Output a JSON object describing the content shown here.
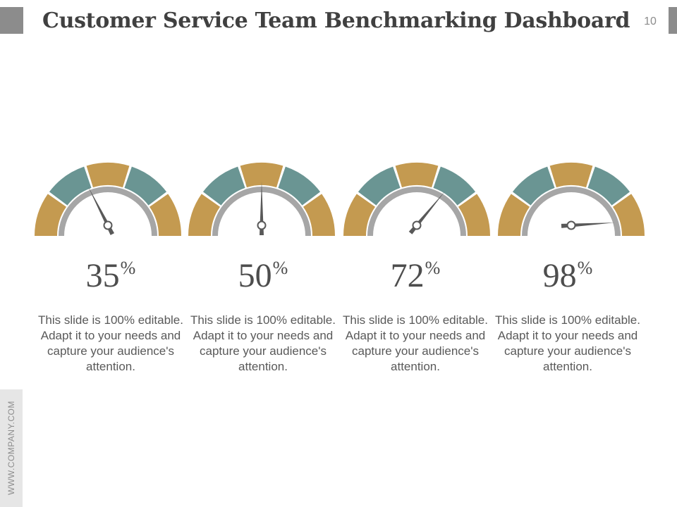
{
  "header": {
    "title": "Customer Service Team Benchmarking Dashboard",
    "page_number": "10"
  },
  "footer": {
    "side_text": "WWW.COMPANY.COM"
  },
  "colors": {
    "gold": "#c49a50",
    "teal": "#6a9593",
    "grey_arc": "#a6a6a6",
    "needle": "#595959"
  },
  "gauges": [
    {
      "percent": 35,
      "value": "35",
      "unit": "%",
      "text": "This slide is 100% editable. Adapt it to your needs and capture your audience's attention."
    },
    {
      "percent": 50,
      "value": "50",
      "unit": "%",
      "text": "This slide is 100% editable. Adapt it to your needs and capture your audience's attention."
    },
    {
      "percent": 72,
      "value": "72",
      "unit": "%",
      "text": "This slide is 100% editable. Adapt it to your needs and capture your audience's attention."
    },
    {
      "percent": 98,
      "value": "98",
      "unit": "%",
      "text": "This slide is 100% editable. Adapt it to your needs and capture your audience's attention."
    }
  ]
}
